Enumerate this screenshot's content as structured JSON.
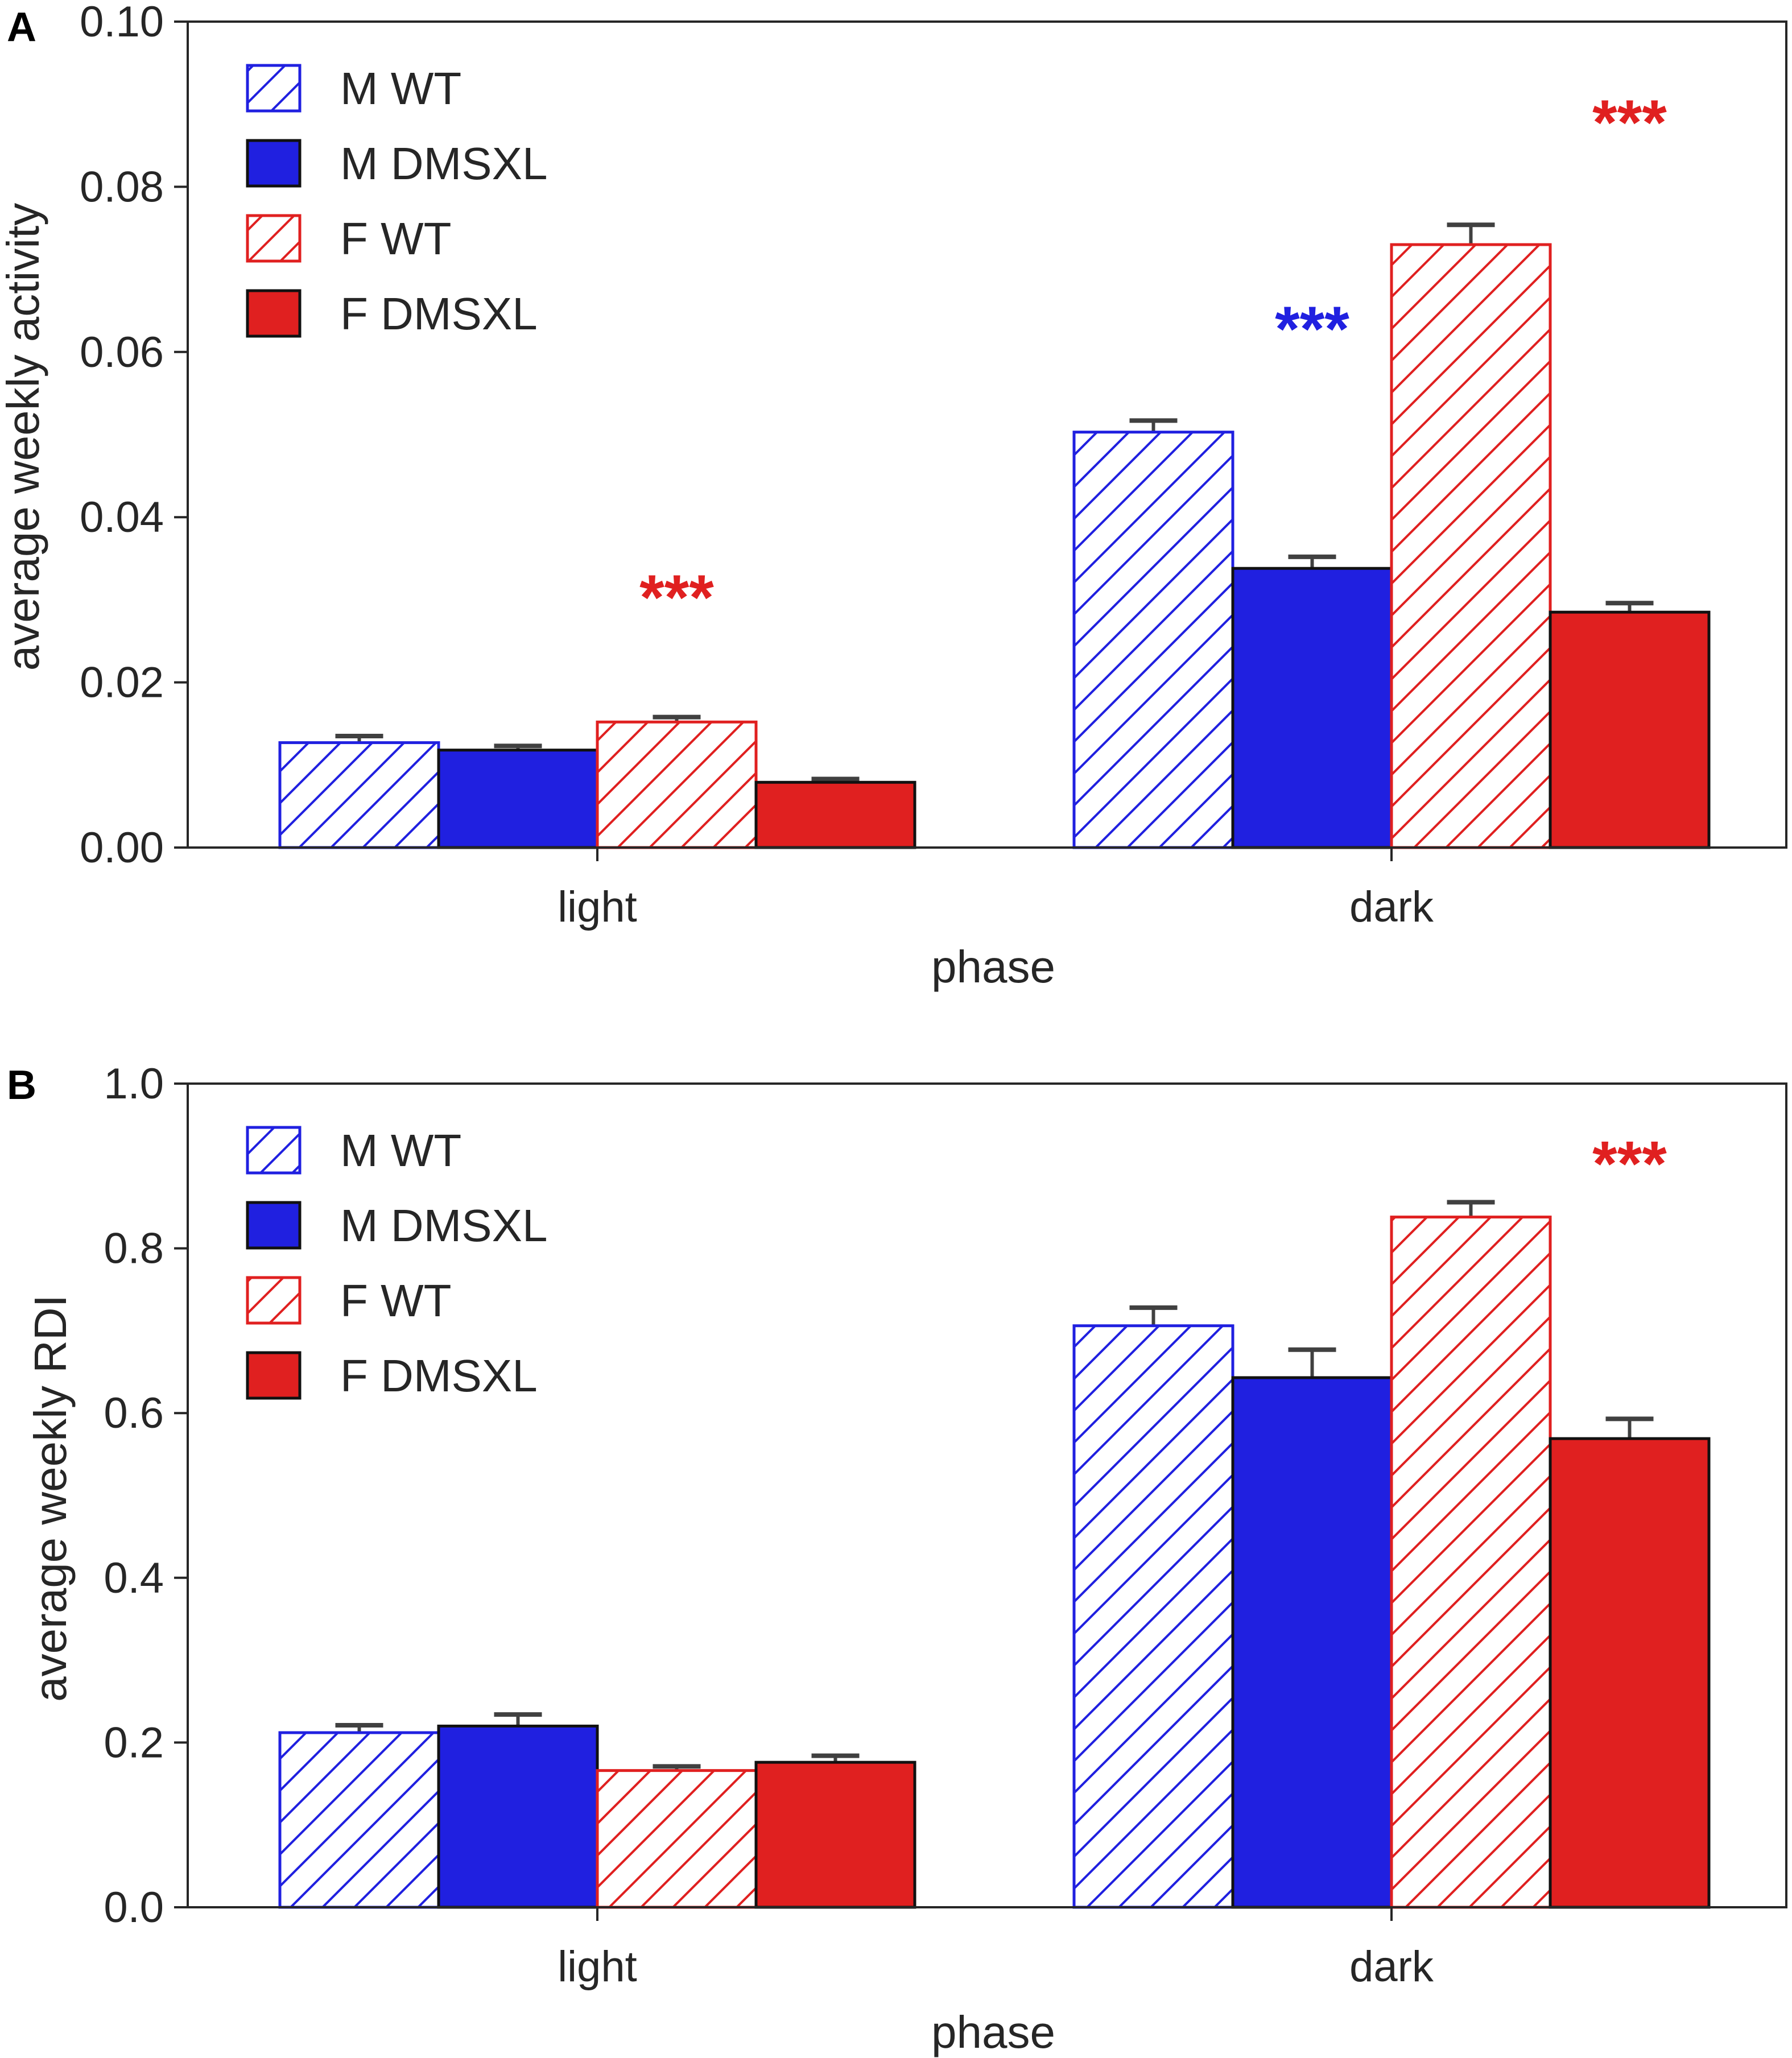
{
  "colors": {
    "blue": "#2020e0",
    "red": "#e02020",
    "axis": "#262626",
    "errorbar": "#404040",
    "edge": "#111111"
  },
  "chart_data": [
    {
      "type": "bar",
      "panel": "A",
      "categories": [
        "light",
        "dark"
      ],
      "xlabel": "phase",
      "ylabel": "average weekly activity",
      "ylim": [
        0,
        0.1
      ],
      "yticks": [
        "0.00",
        "0.02",
        "0.04",
        "0.06",
        "0.08",
        "0.10"
      ],
      "legend_position": "upper-left",
      "series": [
        {
          "name": "M WT",
          "color": "blue",
          "hatched": true,
          "values": [
            0.0127,
            0.0503
          ],
          "errors": [
            0.0008,
            0.0014
          ]
        },
        {
          "name": "M DMSXL",
          "color": "blue",
          "hatched": false,
          "values": [
            0.0118,
            0.0338
          ],
          "errors": [
            0.0005,
            0.0014
          ]
        },
        {
          "name": "F WT",
          "color": "red",
          "hatched": true,
          "values": [
            0.0152,
            0.073
          ],
          "errors": [
            0.0006,
            0.0024
          ]
        },
        {
          "name": "F DMSXL",
          "color": "red",
          "hatched": false,
          "values": [
            0.0079,
            0.0285
          ],
          "errors": [
            0.0004,
            0.0011
          ]
        }
      ],
      "annotations": [
        {
          "text": "***",
          "category": "light",
          "series_index": 2.5,
          "y": 0.0305,
          "color": "red"
        },
        {
          "text": "***",
          "category": "dark",
          "series_index": 1.5,
          "y": 0.063,
          "color": "blue"
        },
        {
          "text": "***",
          "category": "dark",
          "series_index": 3.5,
          "y": 0.088,
          "color": "red"
        }
      ]
    },
    {
      "type": "bar",
      "panel": "B",
      "categories": [
        "light",
        "dark"
      ],
      "xlabel": "phase",
      "ylabel": "average weekly RDI",
      "ylim": [
        0,
        1.0
      ],
      "yticks": [
        "0.0",
        "0.2",
        "0.4",
        "0.6",
        "0.8",
        "1.0"
      ],
      "legend_position": "upper-left",
      "series": [
        {
          "name": "M WT",
          "color": "blue",
          "hatched": true,
          "values": [
            0.212,
            0.706
          ],
          "errors": [
            0.009,
            0.022
          ]
        },
        {
          "name": "M DMSXL",
          "color": "blue",
          "hatched": false,
          "values": [
            0.22,
            0.643
          ],
          "errors": [
            0.014,
            0.034
          ]
        },
        {
          "name": "F WT",
          "color": "red",
          "hatched": true,
          "values": [
            0.166,
            0.838
          ],
          "errors": [
            0.005,
            0.018
          ]
        },
        {
          "name": "F DMSXL",
          "color": "red",
          "hatched": false,
          "values": [
            0.176,
            0.569
          ],
          "errors": [
            0.008,
            0.024
          ]
        }
      ],
      "annotations": [
        {
          "text": "***",
          "category": "dark",
          "series_index": 3.5,
          "y": 0.905,
          "color": "red"
        }
      ]
    }
  ]
}
